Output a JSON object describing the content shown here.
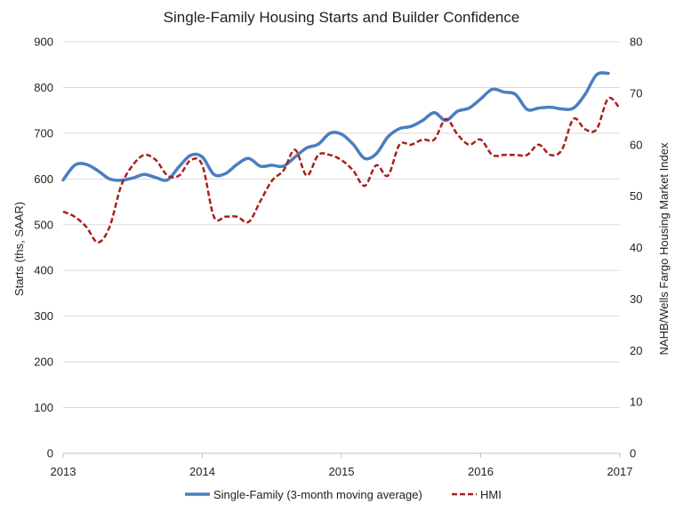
{
  "chart_data": {
    "type": "line",
    "title": "Single-Family Housing Starts and Builder Confidence",
    "ylabel": "Starts (ths, SAAR)",
    "y2label": "NAHB/Wells Fargo Housing Market Index",
    "xlim": [
      2013,
      2017
    ],
    "ylim": [
      0,
      900
    ],
    "y2lim": [
      0,
      80
    ],
    "x_ticks": [
      "2013",
      "2014",
      "2015",
      "2016",
      "2017"
    ],
    "y_ticks": [
      "0",
      "100",
      "200",
      "300",
      "400",
      "500",
      "600",
      "700",
      "800",
      "900"
    ],
    "y2_ticks": [
      "0",
      "10",
      "20",
      "30",
      "40",
      "50",
      "60",
      "70",
      "80"
    ],
    "grid": true,
    "legend_position": "bottom",
    "series": [
      {
        "name": "Single-Family (3-month moving average)",
        "axis": "left",
        "color": "#4a7ebf",
        "style": "solid",
        "x": [
          2013.0,
          2013.0833,
          2013.1667,
          2013.25,
          2013.3333,
          2013.4167,
          2013.5,
          2013.5833,
          2013.6667,
          2013.75,
          2013.8333,
          2013.9167,
          2014.0,
          2014.0833,
          2014.1667,
          2014.25,
          2014.3333,
          2014.4167,
          2014.5,
          2014.5833,
          2014.6667,
          2014.75,
          2014.8333,
          2014.9167,
          2015.0,
          2015.0833,
          2015.1667,
          2015.25,
          2015.3333,
          2015.4167,
          2015.5,
          2015.5833,
          2015.6667,
          2015.75,
          2015.8333,
          2015.9167,
          2016.0,
          2016.0833,
          2016.1667,
          2016.25,
          2016.3333,
          2016.4167,
          2016.5,
          2016.5833,
          2016.6667,
          2016.75,
          2016.8333,
          2016.9167
        ],
        "values": [
          598,
          630,
          632,
          618,
          600,
          597,
          602,
          610,
          603,
          598,
          627,
          652,
          648,
          610,
          612,
          632,
          645,
          628,
          630,
          628,
          648,
          668,
          676,
          700,
          698,
          676,
          645,
          655,
          692,
          710,
          715,
          728,
          745,
          728,
          748,
          755,
          775,
          796,
          790,
          785,
          752,
          755,
          757,
          753,
          755,
          785,
          828,
          831
        ]
      },
      {
        "name": "HMI",
        "axis": "right",
        "color": "#a8201a",
        "style": "dashed",
        "x": [
          2013.0,
          2013.0833,
          2013.1667,
          2013.25,
          2013.3333,
          2013.4167,
          2013.5,
          2013.5833,
          2013.6667,
          2013.75,
          2013.8333,
          2013.9167,
          2014.0,
          2014.0833,
          2014.1667,
          2014.25,
          2014.3333,
          2014.4167,
          2014.5,
          2014.5833,
          2014.6667,
          2014.75,
          2014.8333,
          2014.9167,
          2015.0,
          2015.0833,
          2015.1667,
          2015.25,
          2015.3333,
          2015.4167,
          2015.5,
          2015.5833,
          2015.6667,
          2015.75,
          2015.8333,
          2015.9167,
          2016.0,
          2016.0833,
          2016.1667,
          2016.25,
          2016.3333,
          2016.4167,
          2016.5,
          2016.5833,
          2016.6667,
          2016.75,
          2016.8333,
          2016.9167,
          2017.0
        ],
        "values": [
          47,
          46,
          44,
          41,
          44,
          52,
          56,
          58,
          57,
          54,
          54,
          57,
          56,
          46,
          46,
          46,
          45,
          49,
          53,
          55,
          59,
          54,
          58,
          58,
          57,
          55,
          52,
          56,
          54,
          60,
          60,
          61,
          61,
          65,
          62,
          60,
          61,
          58,
          58,
          58,
          58,
          60,
          58,
          59,
          65,
          63,
          63,
          69,
          67
        ]
      }
    ]
  }
}
